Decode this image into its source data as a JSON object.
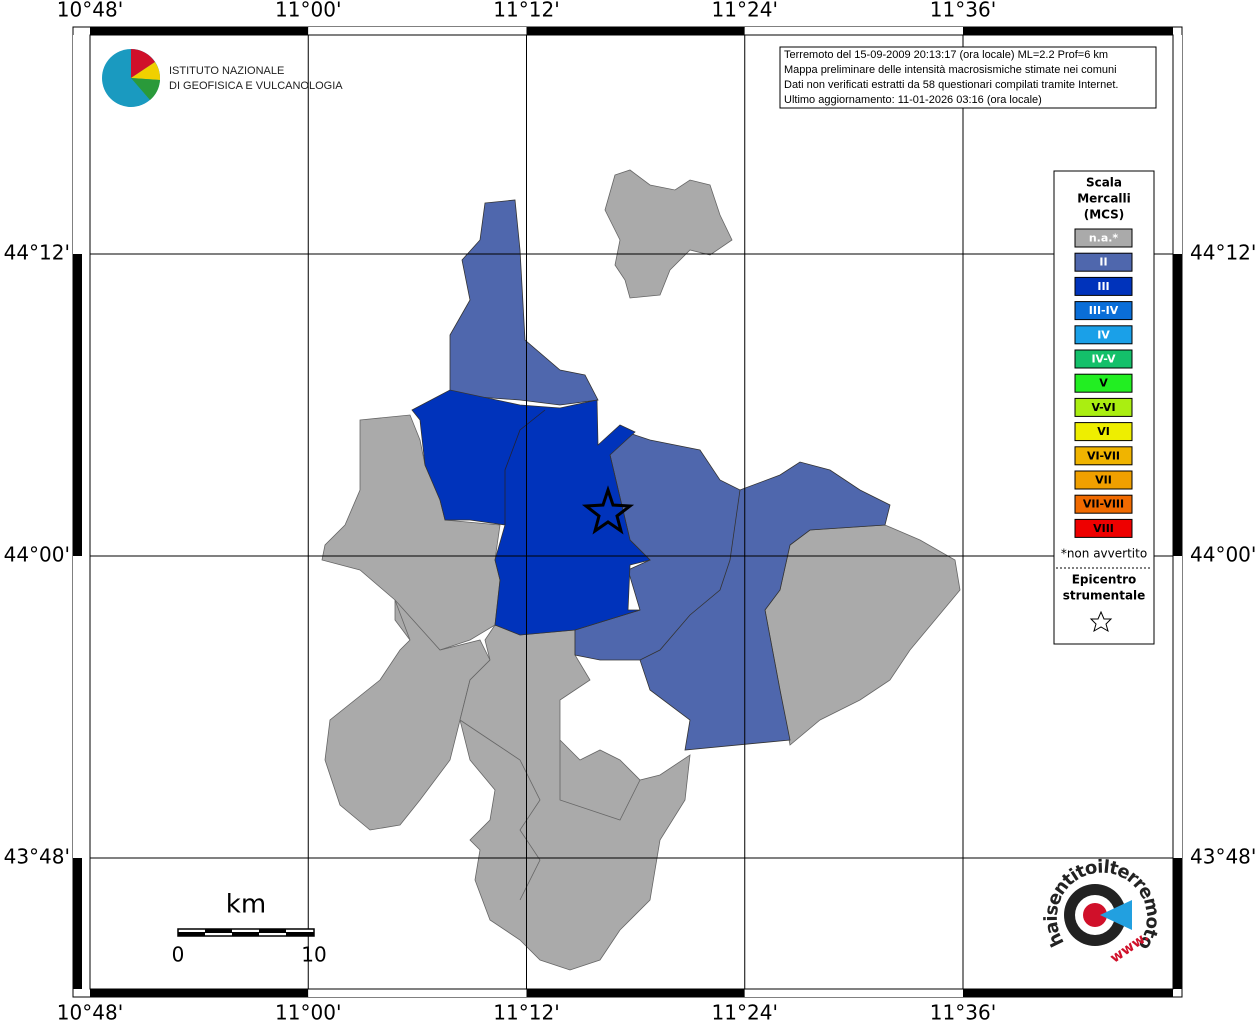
{
  "map": {
    "info": [
      "Terremoto del 15-09-2009 20:13:17 (ora locale) ML=2.2 Prof=6 km",
      "Mappa preliminare delle intensità macrosismiche stimate nei comuni",
      "Dati non verificati estratti da 58 questionari compilati tramite Internet.",
      "Ultimo aggiornamento: 11-01-2026 03:16 (ora locale)"
    ],
    "longitude_labels": [
      "10°48'",
      "11°00'",
      "11°12'",
      "11°24'",
      "11°36'"
    ],
    "latitude_labels": [
      "44°12'",
      "44°00'",
      "43°48'"
    ],
    "logo": {
      "line1": "ISTITUTO NAZIONALE",
      "line2": "DI GEOFISICA E VULCANOLOGIA"
    },
    "legend": {
      "title": [
        "Scala",
        "Mercalli",
        "(MCS)"
      ],
      "levels": [
        {
          "label": "n.a.*",
          "color": "#aaaaaa"
        },
        {
          "label": "II",
          "color": "#4f67ad"
        },
        {
          "label": "III",
          "color": "#0033bb"
        },
        {
          "label": "III-IV",
          "color": "#0a6ed8"
        },
        {
          "label": "IV",
          "color": "#1aa0e8"
        },
        {
          "label": "IV-V",
          "color": "#14c06a"
        },
        {
          "label": "V",
          "color": "#22ee22"
        },
        {
          "label": "V-VI",
          "color": "#aaee11"
        },
        {
          "label": "VI",
          "color": "#eeee00"
        },
        {
          "label": "VI-VII",
          "color": "#f0b400"
        },
        {
          "label": "VII",
          "color": "#f0a000"
        },
        {
          "label": "VII-VIII",
          "color": "#f06a00"
        },
        {
          "label": "VIII",
          "color": "#ee0000"
        }
      ],
      "footnote": "*non avvertito",
      "epicenter": [
        "Epicentro",
        "strumentale"
      ]
    },
    "scale_bar": {
      "unit": "km",
      "labels": [
        0,
        10
      ]
    },
    "badge": {
      "text": "haisentitoilterremoto.it",
      "url": "www."
    }
  }
}
